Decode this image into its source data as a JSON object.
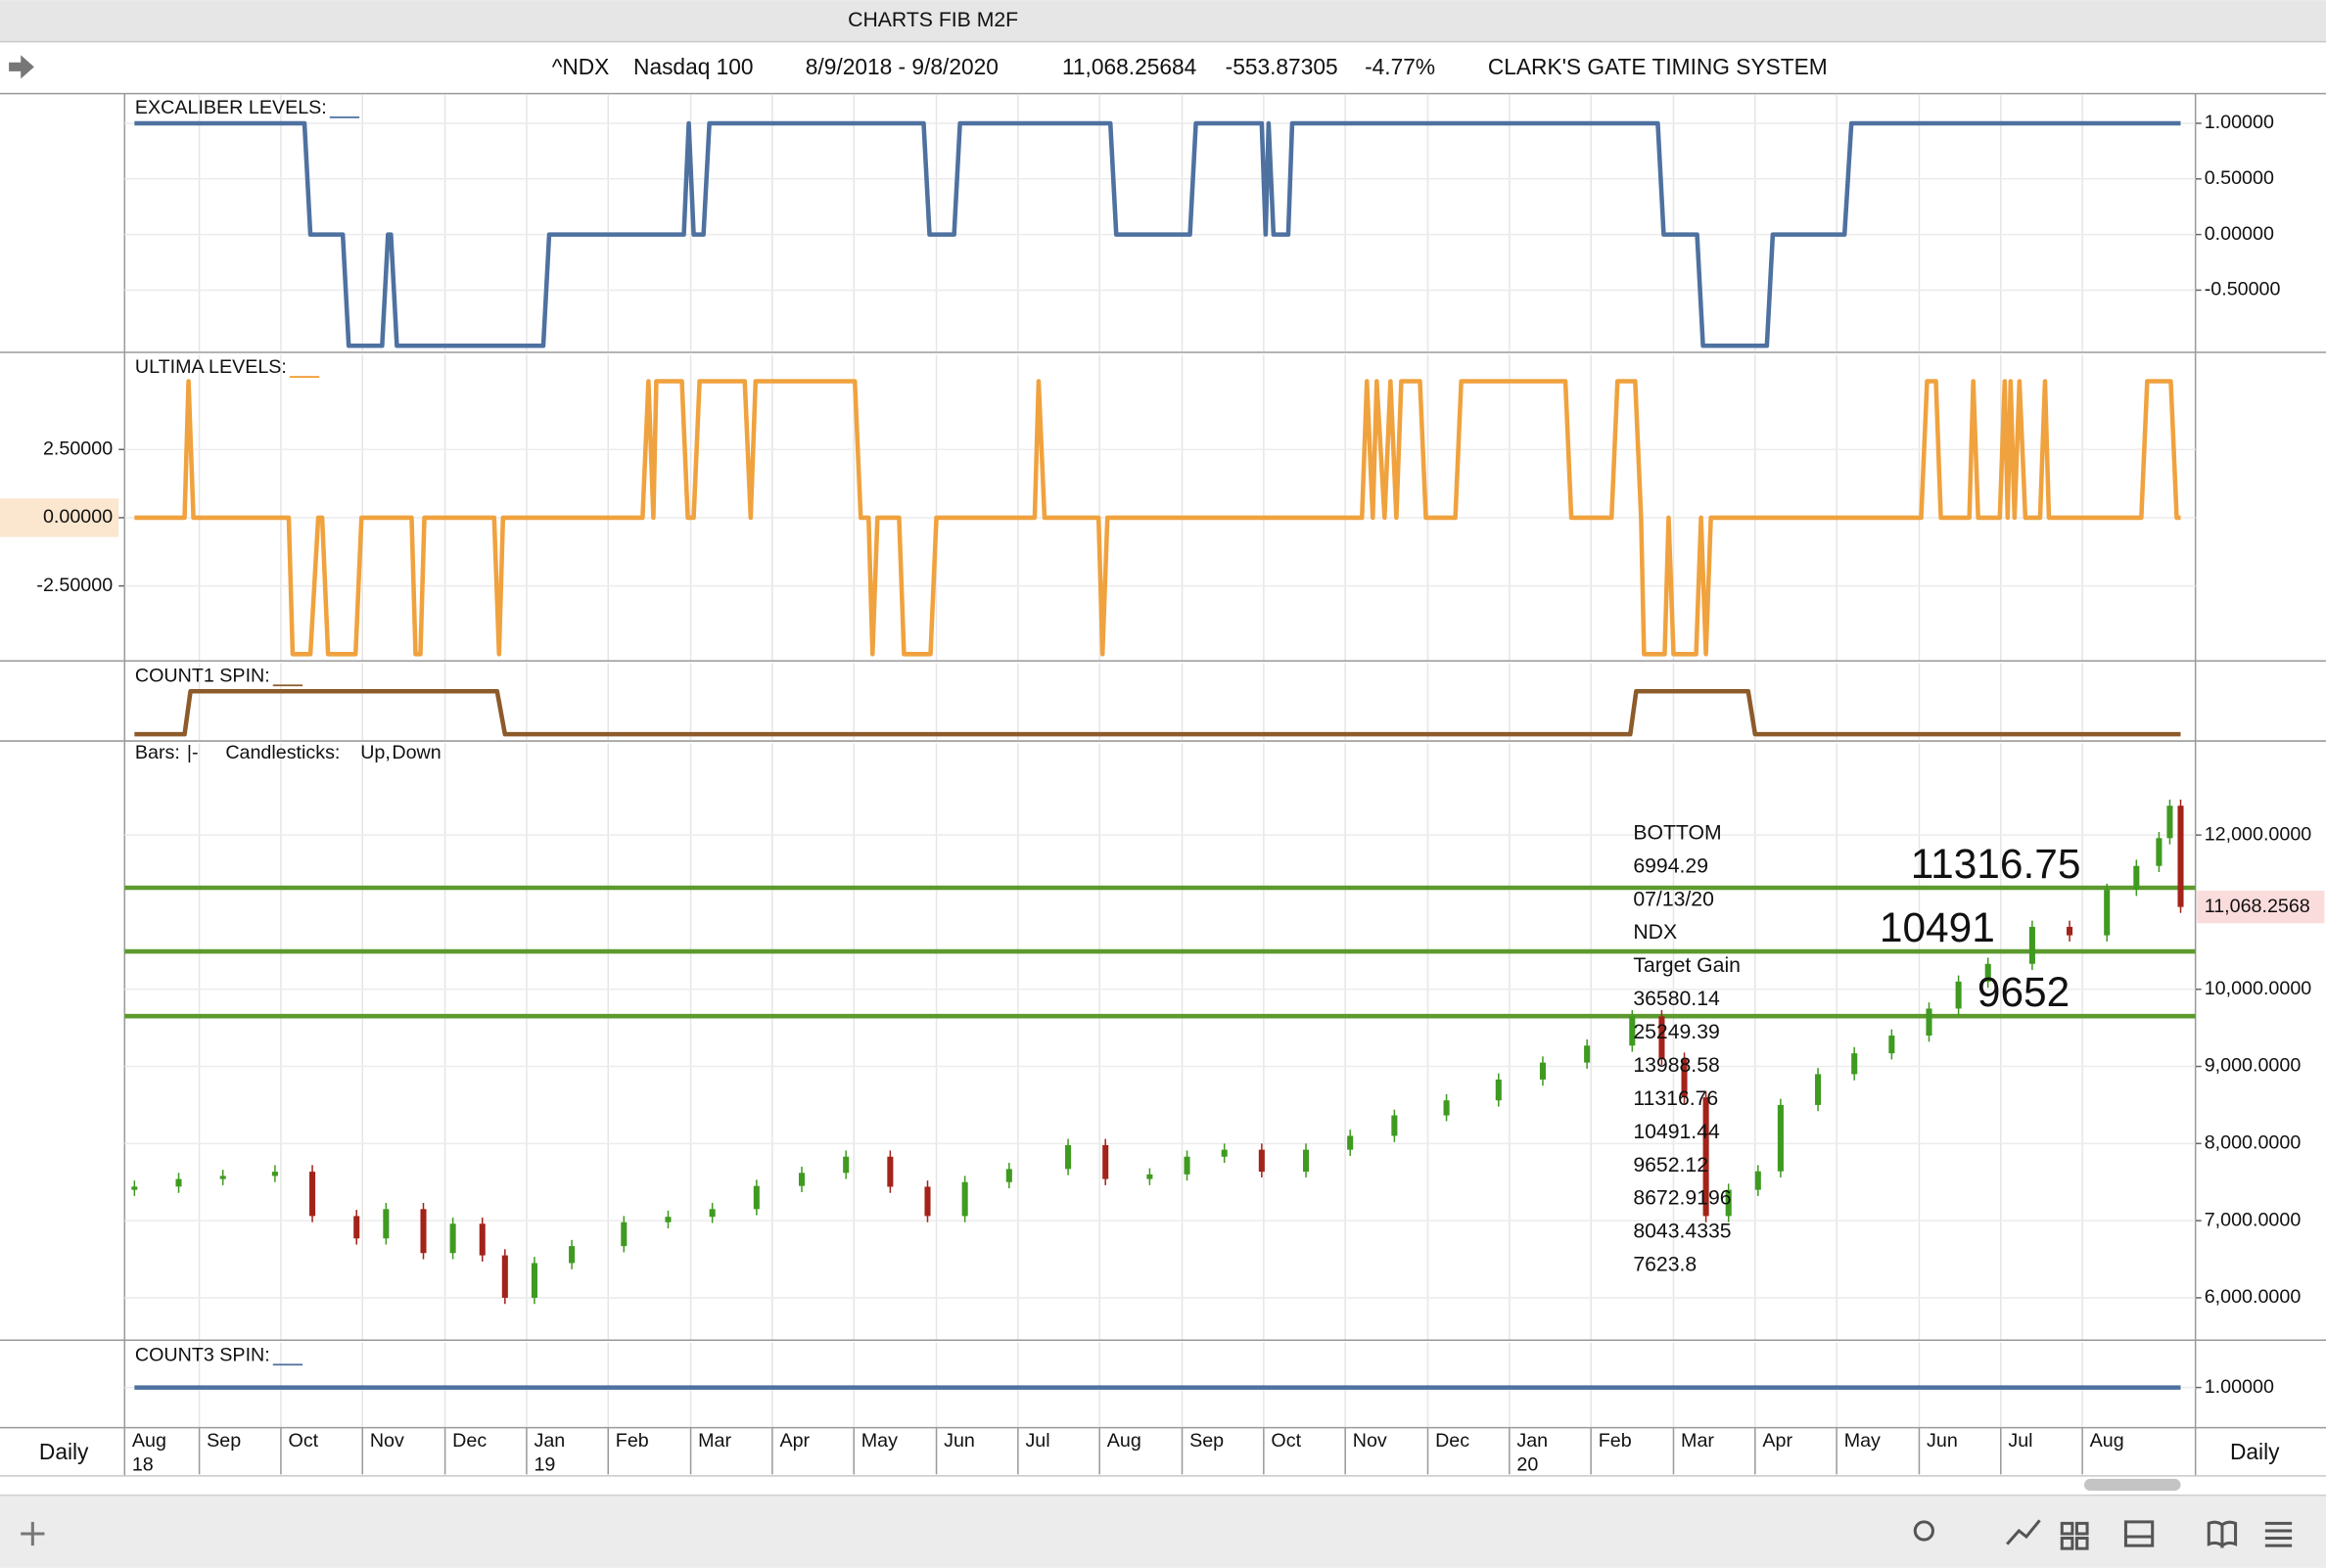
{
  "window_title": "CHARTS FIB M2F",
  "header": {
    "symbol": "^NDX",
    "name": "Nasdaq 100",
    "range": "8/9/2018 - 9/8/2020",
    "last": "11,068.25684",
    "change": "-553.87305",
    "change_pct": "-4.77%",
    "system": "CLARK'S GATE TIMING SYSTEM"
  },
  "period": "Daily",
  "x_axis": {
    "xlim": [
      2018.594,
      2020.683
    ],
    "xticks": [
      {
        "value": 2018.583,
        "label": "Aug"
      },
      {
        "value": 2018.667,
        "label": "Sep"
      },
      {
        "value": 2018.75,
        "label": "Oct"
      },
      {
        "value": 2018.833,
        "label": "Nov"
      },
      {
        "value": 2018.917,
        "label": "Dec"
      },
      {
        "value": 2019,
        "label": "Jan"
      },
      {
        "value": 2019.083,
        "label": "Feb"
      },
      {
        "value": 2019.167,
        "label": "Mar"
      },
      {
        "value": 2019.25,
        "label": "Apr"
      },
      {
        "value": 2019.333,
        "label": "May"
      },
      {
        "value": 2019.417,
        "label": "Jun"
      },
      {
        "value": 2019.5,
        "label": "Jul"
      },
      {
        "value": 2019.583,
        "label": "Aug"
      },
      {
        "value": 2019.667,
        "label": "Sep"
      },
      {
        "value": 2019.75,
        "label": "Oct"
      },
      {
        "value": 2019.833,
        "label": "Nov"
      },
      {
        "value": 2019.917,
        "label": "Dec"
      },
      {
        "value": 2020,
        "label": "Jan"
      },
      {
        "value": 2020.083,
        "label": "Feb"
      },
      {
        "value": 2020.167,
        "label": "Mar"
      },
      {
        "value": 2020.25,
        "label": "Apr"
      },
      {
        "value": 2020.333,
        "label": "May"
      },
      {
        "value": 2020.417,
        "label": "Jun"
      },
      {
        "value": 2020.5,
        "label": "Jul"
      },
      {
        "value": 2020.583,
        "label": "Aug"
      }
    ],
    "year_labels": [
      {
        "value": 2018.583,
        "label": "18"
      },
      {
        "value": 2019,
        "label": "19"
      },
      {
        "value": 2020,
        "label": "20"
      }
    ]
  },
  "chart_data": [
    {
      "type": "line",
      "title": "EXCALIBER LEVELS:",
      "color": "#4e71a0",
      "x": [
        2018.601,
        2018.774,
        2018.78,
        2018.813,
        2018.819,
        2018.853,
        2018.859,
        2018.862,
        2018.868,
        2019.017,
        2019.023,
        2019.16,
        2019.165,
        2019.17,
        2019.18,
        2019.186,
        2019.404,
        2019.41,
        2019.435,
        2019.441,
        2019.594,
        2019.6,
        2019.675,
        2019.681,
        2019.748,
        2019.752,
        2019.755,
        2019.76,
        2019.775,
        2019.779,
        2020.151,
        2020.157,
        2020.191,
        2020.197,
        2020.262,
        2020.268,
        2020.341,
        2020.348,
        2020.683
      ],
      "values": [
        1,
        1,
        0,
        0,
        -1,
        -1,
        0,
        0,
        -1,
        -1,
        0,
        0,
        1,
        0,
        0,
        1,
        1,
        0,
        0,
        1,
        1,
        0,
        0,
        1,
        1,
        0,
        1,
        0,
        0,
        1,
        1,
        0,
        0,
        -1,
        -1,
        0,
        0,
        1,
        1
      ],
      "ylim": [
        -1.053,
        1.267
      ],
      "yticks": [
        {
          "value": 1,
          "label": "1.00000"
        },
        {
          "value": 0.5,
          "label": "0.50000"
        },
        {
          "value": 0,
          "label": "0.00000"
        },
        {
          "value": -0.5,
          "label": "-0.50000"
        }
      ]
    },
    {
      "type": "line",
      "title": "ULTIMA LEVELS:",
      "color": "#f0a23e",
      "x": [
        2018.601,
        2018.652,
        2018.656,
        2018.661,
        2018.758,
        2018.762,
        2018.78,
        2018.788,
        2018.792,
        2018.798,
        2018.826,
        2018.832,
        2018.883,
        2018.887,
        2018.892,
        2018.896,
        2018.967,
        2018.972,
        2018.976,
        2019.118,
        2019.124,
        2019.129,
        2019.132,
        2019.158,
        2019.164,
        2019.17,
        2019.176,
        2019.222,
        2019.228,
        2019.233,
        2019.334,
        2019.34,
        2019.348,
        2019.352,
        2019.357,
        2019.379,
        2019.384,
        2019.411,
        2019.417,
        2019.517,
        2019.521,
        2019.527,
        2019.582,
        2019.586,
        2019.591,
        2019.85,
        2019.855,
        2019.861,
        2019.865,
        2019.873,
        2019.879,
        2019.885,
        2019.89,
        2019.909,
        2019.915,
        2019.945,
        2019.951,
        2020.057,
        2020.063,
        2020.104,
        2020.11,
        2020.128,
        2020.134,
        2020.137,
        2020.158,
        2020.162,
        2020.167,
        2020.19,
        2020.195,
        2020.2,
        2020.205,
        2020.419,
        2020.425,
        2020.434,
        2020.439,
        2020.468,
        2020.472,
        2020.477,
        2020.499,
        2020.504,
        2020.507,
        2020.51,
        2020.514,
        2020.519,
        2020.525,
        2020.54,
        2020.545,
        2020.549,
        2020.643,
        2020.649,
        2020.673,
        2020.679,
        2020.683
      ],
      "values": [
        0,
        0,
        5,
        0,
        0,
        -5,
        -5,
        0,
        0,
        -5,
        -5,
        0,
        0,
        -5,
        -5,
        0,
        0,
        -5,
        0,
        0,
        5,
        0,
        5,
        5,
        0,
        0,
        5,
        5,
        0,
        5,
        5,
        0,
        0,
        -5,
        0,
        0,
        -5,
        -5,
        0,
        0,
        5,
        0,
        0,
        -5,
        0,
        0,
        5,
        0,
        5,
        0,
        5,
        0,
        5,
        5,
        0,
        0,
        5,
        5,
        0,
        0,
        5,
        5,
        0,
        -5,
        -5,
        0,
        -5,
        -5,
        0,
        -5,
        0,
        0,
        5,
        5,
        0,
        0,
        5,
        0,
        0,
        5,
        0,
        5,
        0,
        5,
        0,
        0,
        5,
        0,
        0,
        5,
        5,
        0,
        0
      ],
      "ylim": [
        -5.22,
        6.03
      ],
      "yticks": [
        {
          "value": 2.5,
          "label": "2.50000"
        },
        {
          "value": 0,
          "label": "0.00000"
        },
        {
          "value": -2.5,
          "label": "-2.50000"
        }
      ]
    },
    {
      "type": "line",
      "title": "COUNT1 SPIN:",
      "color": "#8d5a2a",
      "x": [
        2018.601,
        2018.652,
        2018.658,
        2018.97,
        2018.978,
        2020.123,
        2020.129,
        2020.243,
        2020.25,
        2020.683
      ],
      "values": [
        0,
        0,
        1,
        1,
        0,
        0,
        1,
        1,
        0,
        0
      ],
      "ylim": [
        -0.14,
        1.69
      ]
    },
    {
      "type": "candlestick",
      "legend": {
        "bars": "Bars:",
        "bars_symbol": "|-",
        "candlesticks": "Candlesticks:",
        "up": "Up",
        "separator": ",",
        "down": "Down"
      },
      "up_color": "#3f9a20",
      "down_color": "#a3231a",
      "level_color": "#5c9a2e",
      "x": [
        2018.601,
        2018.646,
        2018.691,
        2018.744,
        2018.782,
        2018.827,
        2018.857,
        2018.895,
        2018.925,
        2018.955,
        2018.978,
        2019.008,
        2019.046,
        2019.099,
        2019.144,
        2019.189,
        2019.234,
        2019.28,
        2019.325,
        2019.37,
        2019.408,
        2019.446,
        2019.491,
        2019.551,
        2019.589,
        2019.634,
        2019.672,
        2019.71,
        2019.748,
        2019.793,
        2019.838,
        2019.883,
        2019.936,
        2019.989,
        2020.034,
        2020.079,
        2020.125,
        2020.155,
        2020.178,
        2020.2,
        2020.223,
        2020.253,
        2020.276,
        2020.314,
        2020.351,
        2020.389,
        2020.427,
        2020.457,
        2020.487,
        2020.532,
        2020.57,
        2020.608,
        2020.638,
        2020.661,
        2020.672,
        2020.683
      ],
      "open": [
        7400,
        7442,
        7540,
        7580,
        7635,
        7060,
        6770,
        7150,
        6580,
        6960,
        6550,
        6000,
        6450,
        6670,
        6980,
        7050,
        7150,
        7450,
        7620,
        7830,
        7440,
        7060,
        7500,
        7670,
        7980,
        7540,
        7600,
        7830,
        7920,
        7635,
        7920,
        8100,
        8365,
        8560,
        8830,
        9050,
        9270,
        9650,
        9100,
        8600,
        7060,
        7400,
        7640,
        8500,
        8900,
        9170,
        9400,
        9750,
        10100,
        10330,
        10810,
        10700,
        11290,
        11600,
        11960,
        12380
      ],
      "high": [
        7520,
        7620,
        7660,
        7720,
        7720,
        7140,
        7230,
        7230,
        7040,
        7040,
        6630,
        6530,
        6750,
        7060,
        7130,
        7230,
        7530,
        7700,
        7910,
        7910,
        7520,
        7580,
        7750,
        8060,
        8060,
        7680,
        7910,
        8000,
        8000,
        8000,
        8180,
        8440,
        8640,
        8910,
        9130,
        9350,
        9730,
        9730,
        9180,
        8680,
        7480,
        7720,
        8580,
        8980,
        9250,
        9480,
        9830,
        10180,
        10410,
        10890,
        10890,
        11370,
        11680,
        12040,
        12460,
        12460
      ],
      "low": [
        7320,
        7360,
        7460,
        7500,
        6980,
        6690,
        6690,
        6500,
        6500,
        6470,
        5920,
        5920,
        6370,
        6590,
        6900,
        6970,
        7070,
        7370,
        7540,
        7360,
        6980,
        6980,
        7420,
        7590,
        7460,
        7460,
        7520,
        7750,
        7560,
        7560,
        7840,
        8020,
        8290,
        8480,
        8750,
        8970,
        9190,
        9020,
        8520,
        6980,
        6980,
        7320,
        7560,
        8420,
        8820,
        9090,
        9320,
        9670,
        10020,
        10250,
        10620,
        10620,
        11210,
        11520,
        11880,
        10990
      ],
      "close": [
        7442,
        7540,
        7580,
        7635,
        7060,
        6770,
        7150,
        6580,
        6960,
        6550,
        6000,
        6450,
        6670,
        6980,
        7050,
        7150,
        7450,
        7620,
        7830,
        7440,
        7060,
        7500,
        7670,
        7980,
        7540,
        7600,
        7830,
        7920,
        7635,
        7920,
        8100,
        8365,
        8560,
        8830,
        9050,
        9270,
        9650,
        9100,
        8600,
        7060,
        7400,
        7640,
        8500,
        8900,
        9170,
        9400,
        9750,
        10100,
        10330,
        10810,
        10700,
        11290,
        11600,
        11960,
        12380,
        11068
      ],
      "ylim": [
        5460,
        13210
      ],
      "yticks": [
        {
          "value": 12000,
          "label": "12,000.0000"
        },
        {
          "value": 10000,
          "label": "10,000.0000"
        },
        {
          "value": 9000,
          "label": "9,000.0000"
        },
        {
          "value": 8000,
          "label": "8,000.0000"
        },
        {
          "value": 7000,
          "label": "7,000.0000"
        },
        {
          "value": 6000,
          "label": "6,000.0000"
        }
      ],
      "last_value": {
        "value": 11068.2568,
        "label": "11,068.2568"
      },
      "levels": [
        11316.75,
        10491,
        9652
      ],
      "annotations": [
        "BOTTOM",
        "6994.29",
        "07/13/20",
        "NDX",
        "Target Gain",
        "36580.14",
        "25249.39",
        "13988.58",
        "11316.76",
        "10491.44",
        "9652.12",
        "8672.9196",
        "8043.4335",
        "7623.8"
      ]
    },
    {
      "type": "line",
      "title": "COUNT3 SPIN:",
      "color": "#4e71a0",
      "x": [
        2018.601,
        2020.683
      ],
      "values": [
        1,
        1
      ],
      "ylim": [
        0.45,
        1.65
      ],
      "yticks": [
        {
          "value": 1,
          "label": "1.00000"
        }
      ]
    }
  ]
}
